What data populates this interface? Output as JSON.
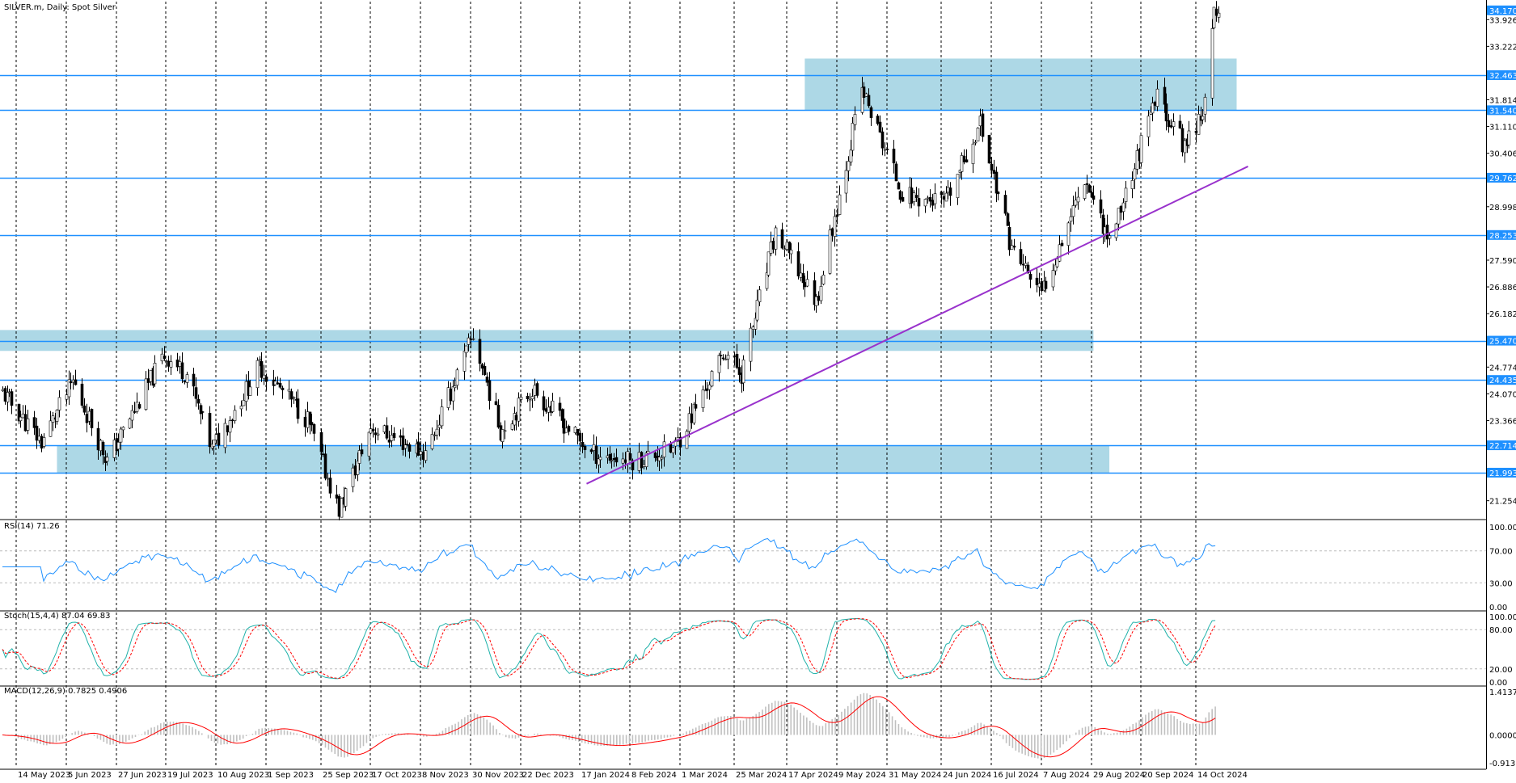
{
  "window": {
    "title": "SILVER.m, Daily:  Spot Silver"
  },
  "colors": {
    "bull": "#ffffff",
    "bear": "#000000",
    "candle_outline": "#000000",
    "level_line": "#1e90ff",
    "zone_fill": "#add8e6",
    "trendline": "#9932cc",
    "rsi_line": "#1e90ff",
    "stoch_main": "#20b2aa",
    "stoch_signal": "#ff0000",
    "macd_hist": "#c0c0c0",
    "macd_signal": "#ff0000",
    "grid": "#000000",
    "price_badge_bg": "#1e90ff",
    "price_badge_text": "#ffffff"
  },
  "date_labels": [
    "14 May 2023",
    "5 Jun 2023",
    "27 Jun 2023",
    "19 Jul 2023",
    "10 Aug 2023",
    "1 Sep 2023",
    "25 Sep 2023",
    "17 Oct 2023",
    "8 Nov 2023",
    "30 Nov 2023",
    "22 Dec 2023",
    "17 Jan 2024",
    "8 Feb 2024",
    "1 Mar 2024",
    "25 Mar 2024",
    "17 Apr 2024",
    "9 May 2024",
    "31 May 2024",
    "24 Jun 2024",
    "16 Jul 2024",
    "7 Aug 2024",
    "29 Aug 2024",
    "20 Sep 2024",
    "14 Oct 2024"
  ],
  "price_axis": {
    "ticks": [
      "33.926",
      "33.222",
      "31.814",
      "31.110",
      "30.406",
      "28.998",
      "27.590",
      "26.886",
      "26.182",
      "24.774",
      "24.070",
      "23.366",
      "21.254"
    ],
    "badges": [
      "34.170",
      "32.463",
      "31.540",
      "29.762",
      "28.253",
      "25.470",
      "24.435",
      "22.714",
      "21.993"
    ]
  },
  "indicators": {
    "rsi": {
      "label": "RSI(14) 71.26",
      "ticks": [
        "100.00",
        "70.00",
        "30.00",
        "0.00"
      ]
    },
    "stoch": {
      "label": "Stoch(15,4,4) 87.04 69.83",
      "ticks": [
        "100.00",
        "80.00",
        "20.00",
        "0.00"
      ]
    },
    "macd": {
      "label": "MACD(12,26,9) 0.7825 0.4906",
      "ticks": [
        "1.4137",
        "0.0000",
        "-0.9136"
      ]
    }
  },
  "chart_data": {
    "type": "candlestick",
    "symbol": "SILVER.m",
    "timeframe": "Daily",
    "price_range": [
      20.8,
      34.4
    ],
    "levels": [
      32.463,
      31.54,
      29.762,
      28.253,
      25.47,
      24.435,
      22.714,
      21.993
    ],
    "zones": [
      {
        "from_date": "25 Apr 2024",
        "to_date": "1 Nov 2024",
        "low": 31.54,
        "high": 32.9
      },
      {
        "from_date": "1 May 2023",
        "to_date": "30 Aug 2024",
        "low": 25.2,
        "high": 25.75
      },
      {
        "from_date": "1 Jun 2023",
        "to_date": "6 Sep 2024",
        "low": 21.993,
        "high": 22.714
      }
    ],
    "trendline": {
      "start": {
        "date": "20 Jan 2024",
        "price": 21.7
      },
      "end": {
        "date": "6 Nov 2024",
        "price": 30.06
      }
    },
    "anchors": [
      {
        "date": "8 May 2023",
        "price": 24.1
      },
      {
        "date": "25 May 2023",
        "price": 22.8
      },
      {
        "date": "8 Jun 2023",
        "price": 24.4
      },
      {
        "date": "23 Jun 2023",
        "price": 22.3
      },
      {
        "date": "18 Jul 2023",
        "price": 25.1
      },
      {
        "date": "28 Jul 2023",
        "price": 24.6
      },
      {
        "date": "8 Aug 2023",
        "price": 22.6
      },
      {
        "date": "29 Aug 2023",
        "price": 24.8
      },
      {
        "date": "19 Sep 2023",
        "price": 23.4
      },
      {
        "date": "3 Oct 2023",
        "price": 21.0
      },
      {
        "date": "17 Oct 2023",
        "price": 23.2
      },
      {
        "date": "10 Nov 2023",
        "price": 22.5
      },
      {
        "date": "1 Dec 2023",
        "price": 25.6
      },
      {
        "date": "13 Dec 2023",
        "price": 23.1
      },
      {
        "date": "27 Dec 2023",
        "price": 24.2
      },
      {
        "date": "22 Jan 2024",
        "price": 22.5
      },
      {
        "date": "9 Feb 2024",
        "price": 22.3
      },
      {
        "date": "27 Feb 2024",
        "price": 22.6
      },
      {
        "date": "21 Mar 2024",
        "price": 25.2
      },
      {
        "date": "28 Mar 2024",
        "price": 24.6
      },
      {
        "date": "12 Apr 2024",
        "price": 28.3
      },
      {
        "date": "22 Apr 2024",
        "price": 27.3
      },
      {
        "date": "30 Apr 2024",
        "price": 26.5
      },
      {
        "date": "20 May 2024",
        "price": 32.1
      },
      {
        "date": "7 Jun 2024",
        "price": 29.3
      },
      {
        "date": "26 Jun 2024",
        "price": 29.1
      },
      {
        "date": "11 Jul 2024",
        "price": 31.2
      },
      {
        "date": "25 Jul 2024",
        "price": 27.9
      },
      {
        "date": "7 Aug 2024",
        "price": 26.7
      },
      {
        "date": "26 Aug 2024",
        "price": 29.8
      },
      {
        "date": "6 Sep 2024",
        "price": 28.1
      },
      {
        "date": "27 Sep 2024",
        "price": 31.9
      },
      {
        "date": "9 Oct 2024",
        "price": 30.6
      },
      {
        "date": "18 Oct 2024",
        "price": 31.7
      },
      {
        "date": "22 Oct 2024",
        "price": 34.1
      }
    ],
    "rsi_range": [
      0,
      100
    ],
    "macd_range": [
      -0.9136,
      1.4137
    ]
  }
}
